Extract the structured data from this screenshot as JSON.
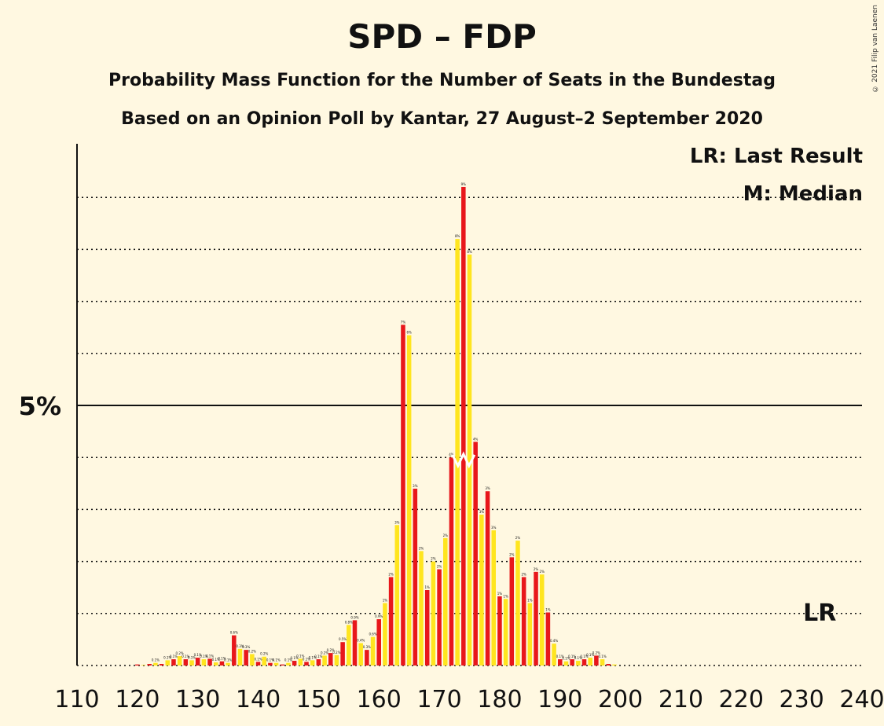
{
  "title": "SPD – FDP",
  "subtitle1": "Probability Mass Function for the Number of Seats in the Bundestag",
  "subtitle2": "Based on an Opinion Poll by Kantar, 27 August–2 September 2020",
  "copyright": "© 2021 Filip van Laenen",
  "legend": {
    "lr": "LR: Last Result",
    "median": "M: Median"
  },
  "markers": {
    "lr_label": "LR",
    "lr_seat": 232,
    "median_label": "M",
    "median_seat": 174
  },
  "colors": {
    "red": "#E8171B",
    "yellow": "#FFE51F",
    "background": "#FFF8E1"
  },
  "chart_data": {
    "type": "bar",
    "xlim": [
      110,
      240
    ],
    "ylim": [
      0,
      10
    ],
    "y_unit": "%",
    "y_tick_labels": [
      {
        "value": 5,
        "label": "5%"
      }
    ],
    "x_tick_labels": [
      "110",
      "120",
      "130",
      "140",
      "150",
      "160",
      "170",
      "180",
      "190",
      "200",
      "210",
      "220",
      "230",
      "240"
    ],
    "x": [
      110,
      111,
      112,
      113,
      114,
      115,
      116,
      117,
      118,
      119,
      120,
      121,
      122,
      123,
      124,
      125,
      126,
      127,
      128,
      129,
      130,
      131,
      132,
      133,
      134,
      135,
      136,
      137,
      138,
      139,
      140,
      141,
      142,
      143,
      144,
      145,
      146,
      147,
      148,
      149,
      150,
      151,
      152,
      153,
      154,
      155,
      156,
      157,
      158,
      159,
      160,
      161,
      162,
      163,
      164,
      165,
      166,
      167,
      168,
      169,
      170,
      171,
      172,
      173,
      174,
      175,
      176,
      177,
      178,
      179,
      180,
      181,
      182,
      183,
      184,
      185,
      186,
      187,
      188,
      189,
      190,
      191,
      192,
      193,
      194,
      195,
      196,
      197,
      198,
      199,
      200,
      201,
      202,
      203,
      204,
      205,
      206,
      207,
      208,
      209,
      210,
      211,
      212,
      213,
      214,
      215,
      216,
      217,
      218,
      219,
      220,
      221,
      222,
      223,
      224,
      225,
      226,
      227,
      228,
      229,
      230,
      231,
      232,
      233,
      234,
      235,
      236,
      237,
      238,
      239,
      240
    ],
    "values": [
      0,
      0,
      0,
      0,
      0,
      0,
      0,
      0,
      0,
      0,
      0.02,
      0.01,
      0.03,
      0.05,
      0.03,
      0.1,
      0.12,
      0.18,
      0.12,
      0.1,
      0.15,
      0.12,
      0.13,
      0.06,
      0.08,
      0.05,
      0.58,
      0.32,
      0.3,
      0.22,
      0.07,
      0.17,
      0.05,
      0.05,
      0.02,
      0.05,
      0.09,
      0.13,
      0.07,
      0.1,
      0.12,
      0.19,
      0.24,
      0.2,
      0.45,
      0.78,
      0.87,
      0.43,
      0.3,
      0.55,
      0.89,
      1.2,
      1.7,
      2.7,
      6.55,
      6.35,
      3.4,
      2.2,
      1.45,
      2.0,
      1.85,
      2.45,
      4.0,
      8.2,
      9.2,
      7.9,
      4.3,
      2.9,
      3.35,
      2.6,
      1.33,
      1.28,
      2.08,
      2.4,
      1.7,
      1.2,
      1.8,
      1.75,
      1.02,
      0.42,
      0.12,
      0.08,
      0.12,
      0.09,
      0.12,
      0.15,
      0.19,
      0.12,
      0.03,
      0.02,
      0,
      0,
      0,
      0,
      0,
      0,
      0,
      0,
      0,
      0,
      0,
      0,
      0,
      0,
      0,
      0,
      0,
      0,
      0,
      0,
      0,
      0,
      0,
      0,
      0,
      0,
      0,
      0,
      0,
      0,
      0,
      0,
      0,
      0,
      0,
      0,
      0,
      0,
      0,
      0,
      0
    ]
  }
}
